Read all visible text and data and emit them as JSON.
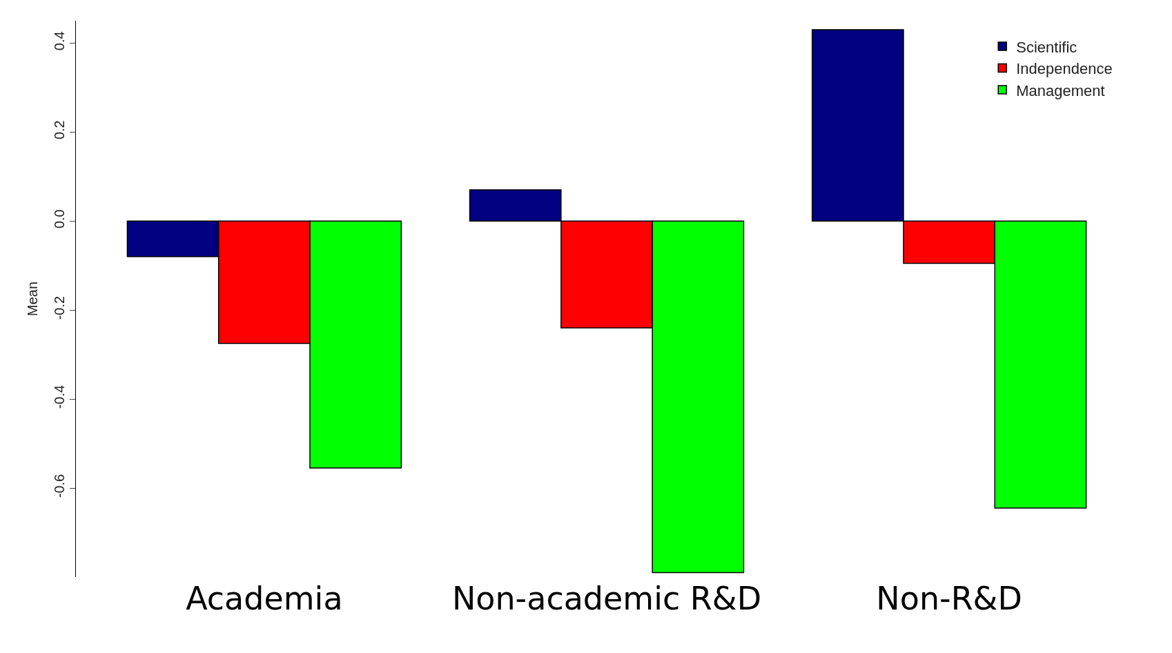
{
  "chart_data": {
    "type": "bar",
    "ylabel": "Mean",
    "categories": [
      "Academia",
      "Non-academic R&D",
      "Non-R&D"
    ],
    "series": [
      {
        "name": "Scientific",
        "color": "#000080",
        "values": [
          -0.08,
          0.07,
          0.43
        ]
      },
      {
        "name": "Independence",
        "color": "#ff0000",
        "values": [
          -0.275,
          -0.24,
          -0.095
        ]
      },
      {
        "name": "Management",
        "color": "#00ff00",
        "values": [
          -0.555,
          -0.79,
          -0.645
        ]
      }
    ],
    "ylim": [
      -0.8,
      0.45
    ],
    "yticks": [
      {
        "value": 0.4,
        "label": "0.4"
      },
      {
        "value": 0.2,
        "label": "0.2"
      },
      {
        "value": 0,
        "label": "0.0"
      },
      {
        "value": -0.2,
        "label": "-0.2"
      },
      {
        "value": -0.4,
        "label": "-0.4"
      },
      {
        "value": -0.6,
        "label": "-0.6"
      }
    ],
    "legend": "top right"
  }
}
